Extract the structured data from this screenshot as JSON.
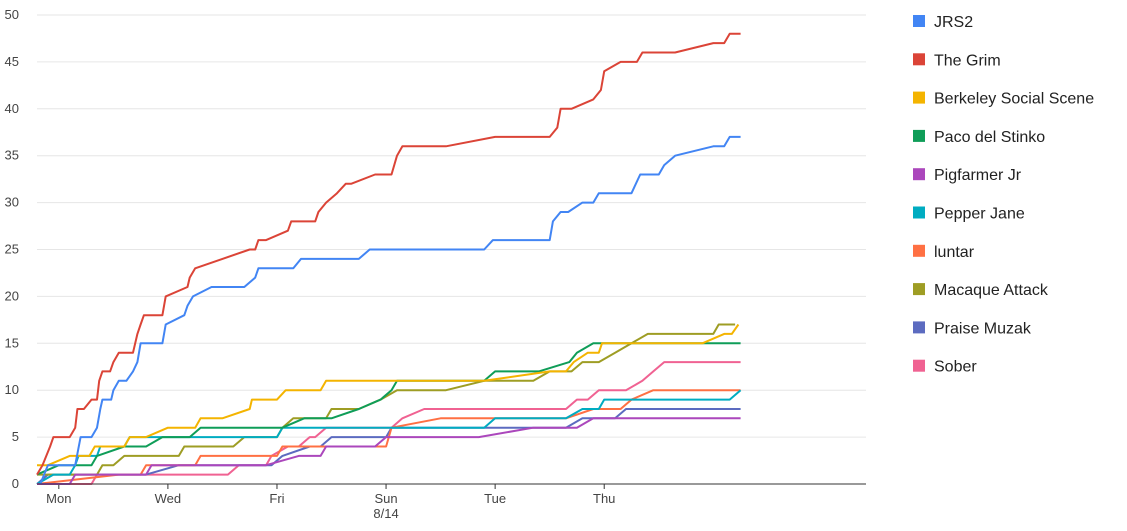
{
  "chart_data": {
    "type": "line",
    "title": "",
    "xlabel": "",
    "ylabel": "",
    "ylim": [
      0,
      50
    ],
    "y_ticks": [
      0,
      5,
      10,
      15,
      20,
      25,
      30,
      35,
      40,
      45,
      50
    ],
    "xlim": [
      0,
      7.6
    ],
    "x_ticks": [
      {
        "x": 0.2,
        "label": "Mon",
        "sublabel": ""
      },
      {
        "x": 1.2,
        "label": "Wed",
        "sublabel": ""
      },
      {
        "x": 2.2,
        "label": "Fri",
        "sublabel": ""
      },
      {
        "x": 3.2,
        "label": "Sun",
        "sublabel": "8/14"
      },
      {
        "x": 4.2,
        "label": "Tue",
        "sublabel": ""
      },
      {
        "x": 5.2,
        "label": "Thu",
        "sublabel": ""
      }
    ],
    "grid": true,
    "legend": "right",
    "series": [
      {
        "name": "JRS2",
        "color": "#4285f4",
        "points": [
          [
            0.03,
            0
          ],
          [
            0.1,
            2
          ],
          [
            0.35,
            2
          ],
          [
            0.4,
            5
          ],
          [
            0.5,
            5
          ],
          [
            0.55,
            6
          ],
          [
            0.58,
            8
          ],
          [
            0.6,
            9
          ],
          [
            0.68,
            9
          ],
          [
            0.7,
            10
          ],
          [
            0.75,
            11
          ],
          [
            0.82,
            11
          ],
          [
            0.88,
            12
          ],
          [
            0.92,
            13
          ],
          [
            0.95,
            15
          ],
          [
            1.15,
            15
          ],
          [
            1.18,
            17
          ],
          [
            1.35,
            18
          ],
          [
            1.38,
            19
          ],
          [
            1.43,
            20
          ],
          [
            1.6,
            21
          ],
          [
            1.9,
            21
          ],
          [
            2.0,
            22
          ],
          [
            2.03,
            23
          ],
          [
            2.35,
            23
          ],
          [
            2.42,
            24
          ],
          [
            2.95,
            24
          ],
          [
            3.05,
            25
          ],
          [
            4.1,
            25
          ],
          [
            4.18,
            26
          ],
          [
            4.7,
            26
          ],
          [
            4.73,
            28
          ],
          [
            4.8,
            29
          ],
          [
            4.87,
            29
          ],
          [
            5.0,
            30
          ],
          [
            5.1,
            30
          ],
          [
            5.15,
            31
          ],
          [
            5.45,
            31
          ],
          [
            5.53,
            33
          ],
          [
            5.7,
            33
          ],
          [
            5.75,
            34
          ],
          [
            5.85,
            35
          ],
          [
            6.2,
            36
          ],
          [
            6.3,
            36
          ],
          [
            6.35,
            37
          ],
          [
            6.45,
            37
          ]
        ]
      },
      {
        "name": "The Grim",
        "color": "#db4437",
        "points": [
          [
            0.0,
            1
          ],
          [
            0.05,
            2
          ],
          [
            0.12,
            4
          ],
          [
            0.15,
            5
          ],
          [
            0.3,
            5
          ],
          [
            0.35,
            6
          ],
          [
            0.37,
            8
          ],
          [
            0.43,
            8
          ],
          [
            0.5,
            9
          ],
          [
            0.55,
            9
          ],
          [
            0.57,
            11
          ],
          [
            0.6,
            12
          ],
          [
            0.67,
            12
          ],
          [
            0.7,
            13
          ],
          [
            0.75,
            14
          ],
          [
            0.88,
            14
          ],
          [
            0.92,
            16
          ],
          [
            0.95,
            17
          ],
          [
            0.98,
            18
          ],
          [
            1.15,
            18
          ],
          [
            1.18,
            20
          ],
          [
            1.38,
            21
          ],
          [
            1.4,
            22
          ],
          [
            1.45,
            23
          ],
          [
            1.7,
            24
          ],
          [
            1.95,
            25
          ],
          [
            2.0,
            25
          ],
          [
            2.03,
            26
          ],
          [
            2.1,
            26
          ],
          [
            2.3,
            27
          ],
          [
            2.33,
            28
          ],
          [
            2.55,
            28
          ],
          [
            2.58,
            29
          ],
          [
            2.65,
            30
          ],
          [
            2.75,
            31
          ],
          [
            2.83,
            32
          ],
          [
            2.88,
            32
          ],
          [
            3.1,
            33
          ],
          [
            3.25,
            33
          ],
          [
            3.3,
            35
          ],
          [
            3.35,
            36
          ],
          [
            3.75,
            36
          ],
          [
            4.2,
            37
          ],
          [
            4.7,
            37
          ],
          [
            4.77,
            38
          ],
          [
            4.8,
            40
          ],
          [
            4.9,
            40
          ],
          [
            5.1,
            41
          ],
          [
            5.17,
            42
          ],
          [
            5.2,
            44
          ],
          [
            5.35,
            45
          ],
          [
            5.5,
            45
          ],
          [
            5.55,
            46
          ],
          [
            5.85,
            46
          ],
          [
            6.2,
            47
          ],
          [
            6.3,
            47
          ],
          [
            6.35,
            48
          ],
          [
            6.45,
            48
          ]
        ]
      },
      {
        "name": "Berkeley Social Scene",
        "color": "#f4b400",
        "points": [
          [
            0.0,
            2
          ],
          [
            0.1,
            2
          ],
          [
            0.3,
            3
          ],
          [
            0.48,
            3
          ],
          [
            0.53,
            4
          ],
          [
            0.8,
            4
          ],
          [
            0.85,
            5
          ],
          [
            1.0,
            5
          ],
          [
            1.2,
            6
          ],
          [
            1.45,
            6
          ],
          [
            1.5,
            7
          ],
          [
            1.7,
            7
          ],
          [
            1.95,
            8
          ],
          [
            1.97,
            9
          ],
          [
            2.2,
            9
          ],
          [
            2.28,
            10
          ],
          [
            2.6,
            10
          ],
          [
            2.65,
            11
          ],
          [
            3.35,
            11
          ],
          [
            4.1,
            11
          ],
          [
            4.7,
            12
          ],
          [
            4.85,
            12
          ],
          [
            4.92,
            13
          ],
          [
            5.05,
            14
          ],
          [
            5.15,
            14
          ],
          [
            5.18,
            15
          ],
          [
            6.1,
            15
          ],
          [
            6.3,
            16
          ],
          [
            6.37,
            16
          ],
          [
            6.43,
            17
          ]
        ]
      },
      {
        "name": "Paco del Stinko",
        "color": "#0f9d58",
        "points": [
          [
            0.0,
            1
          ],
          [
            0.2,
            2
          ],
          [
            0.5,
            2
          ],
          [
            0.55,
            3
          ],
          [
            0.8,
            4
          ],
          [
            1.0,
            4
          ],
          [
            1.15,
            5
          ],
          [
            1.4,
            5
          ],
          [
            1.5,
            6
          ],
          [
            2.25,
            6
          ],
          [
            2.45,
            7
          ],
          [
            2.7,
            7
          ],
          [
            2.95,
            8
          ],
          [
            3.15,
            9
          ],
          [
            3.25,
            10
          ],
          [
            3.3,
            11
          ],
          [
            4.1,
            11
          ],
          [
            4.2,
            12
          ],
          [
            4.6,
            12
          ],
          [
            4.88,
            13
          ],
          [
            4.95,
            14
          ],
          [
            5.1,
            15
          ],
          [
            6.45,
            15
          ]
        ]
      },
      {
        "name": "Pigfarmer Jr",
        "color": "#ab47bc",
        "points": [
          [
            0.0,
            0
          ],
          [
            0.3,
            0
          ],
          [
            0.35,
            1
          ],
          [
            1.0,
            1
          ],
          [
            1.05,
            2
          ],
          [
            2.1,
            2
          ],
          [
            2.4,
            3
          ],
          [
            2.6,
            3
          ],
          [
            2.65,
            4
          ],
          [
            3.1,
            4
          ],
          [
            3.2,
            5
          ],
          [
            4.05,
            5
          ],
          [
            4.55,
            6
          ],
          [
            4.95,
            6
          ],
          [
            5.1,
            7
          ],
          [
            6.45,
            7
          ]
        ]
      },
      {
        "name": "Pepper Jane",
        "color": "#00acc1",
        "points": [
          [
            0.0,
            0
          ],
          [
            0.15,
            1
          ],
          [
            0.3,
            1
          ],
          [
            0.35,
            2
          ],
          [
            0.38,
            3
          ],
          [
            0.55,
            3
          ],
          [
            0.58,
            4
          ],
          [
            0.8,
            4
          ],
          [
            0.85,
            5
          ],
          [
            1.0,
            5
          ],
          [
            1.15,
            5
          ],
          [
            2.2,
            5
          ],
          [
            2.25,
            6
          ],
          [
            3.0,
            6
          ],
          [
            3.1,
            6
          ],
          [
            4.1,
            6
          ],
          [
            4.2,
            7
          ],
          [
            4.85,
            7
          ],
          [
            5.0,
            8
          ],
          [
            5.15,
            8
          ],
          [
            5.2,
            9
          ],
          [
            6.35,
            9
          ],
          [
            6.45,
            10
          ]
        ]
      },
      {
        "name": "luntar",
        "color": "#ff7043",
        "points": [
          [
            0.0,
            0
          ],
          [
            0.75,
            1
          ],
          [
            0.95,
            1
          ],
          [
            1.0,
            2
          ],
          [
            1.45,
            2
          ],
          [
            1.5,
            3
          ],
          [
            2.2,
            3
          ],
          [
            2.25,
            4
          ],
          [
            3.2,
            4
          ],
          [
            3.25,
            6
          ],
          [
            3.7,
            7
          ],
          [
            4.1,
            7
          ],
          [
            4.85,
            7
          ],
          [
            5.1,
            8
          ],
          [
            5.35,
            8
          ],
          [
            5.45,
            9
          ],
          [
            5.65,
            10
          ],
          [
            6.45,
            10
          ]
        ]
      },
      {
        "name": "Macaque Attack",
        "color": "#9e9d24",
        "points": [
          [
            0.0,
            1
          ],
          [
            0.55,
            1
          ],
          [
            0.6,
            2
          ],
          [
            0.7,
            2
          ],
          [
            0.8,
            3
          ],
          [
            1.3,
            3
          ],
          [
            1.35,
            4
          ],
          [
            1.8,
            4
          ],
          [
            1.9,
            5
          ],
          [
            2.2,
            5
          ],
          [
            2.25,
            6
          ],
          [
            2.35,
            7
          ],
          [
            2.65,
            7
          ],
          [
            2.7,
            8
          ],
          [
            2.95,
            8
          ],
          [
            3.15,
            9
          ],
          [
            3.3,
            10
          ],
          [
            3.75,
            10
          ],
          [
            4.1,
            11
          ],
          [
            4.55,
            11
          ],
          [
            4.7,
            12
          ],
          [
            4.9,
            12
          ],
          [
            5.0,
            13
          ],
          [
            5.15,
            13
          ],
          [
            5.3,
            14
          ],
          [
            5.45,
            15
          ],
          [
            5.6,
            16
          ],
          [
            6.2,
            16
          ],
          [
            6.25,
            17
          ],
          [
            6.4,
            17
          ]
        ]
      },
      {
        "name": "Praise Muzak",
        "color": "#5c6bc0",
        "points": [
          [
            0.0,
            0
          ],
          [
            0.1,
            1
          ],
          [
            1.0,
            1
          ],
          [
            1.3,
            2
          ],
          [
            2.15,
            2
          ],
          [
            2.25,
            3
          ],
          [
            2.5,
            4
          ],
          [
            2.6,
            4
          ],
          [
            2.7,
            5
          ],
          [
            3.2,
            5
          ],
          [
            3.25,
            6
          ],
          [
            4.85,
            6
          ],
          [
            5.0,
            7
          ],
          [
            5.3,
            7
          ],
          [
            5.4,
            8
          ],
          [
            6.45,
            8
          ]
        ]
      },
      {
        "name": "Sober",
        "color": "#f06292",
        "points": [
          [
            0.0,
            0
          ],
          [
            0.15,
            0
          ],
          [
            0.5,
            0
          ],
          [
            0.55,
            1
          ],
          [
            1.45,
            1
          ],
          [
            1.75,
            1
          ],
          [
            1.85,
            2
          ],
          [
            2.1,
            2
          ],
          [
            2.15,
            3
          ],
          [
            2.3,
            4
          ],
          [
            2.4,
            4
          ],
          [
            2.5,
            5
          ],
          [
            2.55,
            5
          ],
          [
            2.65,
            6
          ],
          [
            3.25,
            6
          ],
          [
            3.35,
            7
          ],
          [
            3.55,
            8
          ],
          [
            4.85,
            8
          ],
          [
            4.95,
            9
          ],
          [
            5.05,
            9
          ],
          [
            5.15,
            10
          ],
          [
            5.4,
            10
          ],
          [
            5.55,
            11
          ],
          [
            5.65,
            12
          ],
          [
            5.75,
            13
          ],
          [
            6.45,
            13
          ]
        ]
      }
    ]
  }
}
